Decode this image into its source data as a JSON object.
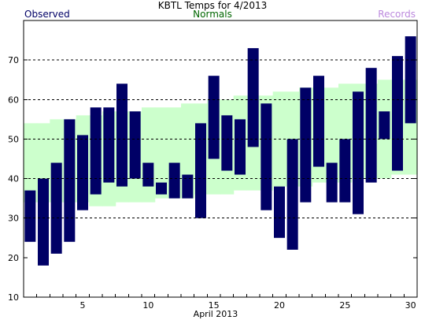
{
  "chart_data": {
    "type": "bar",
    "title": "KBTL Temps for 4/2013",
    "xlabel": "April 2013",
    "ylabel": "",
    "legend": {
      "observed": "Observed",
      "normals": "Normals",
      "records": "Records"
    },
    "colors": {
      "observed": "#000066",
      "normals_band": "#ccffcc",
      "normals_text": "#006600",
      "records_text": "#bb88dd",
      "title_text": "#000000",
      "grid": "#000000"
    },
    "xlim": [
      0.5,
      30.5
    ],
    "ylim": [
      10,
      80
    ],
    "xticks": [
      5,
      10,
      15,
      20,
      25,
      30
    ],
    "yticks": [
      10,
      20,
      30,
      40,
      50,
      60,
      70
    ],
    "grid_y": [
      30,
      40,
      50,
      60,
      70
    ],
    "days": [
      1,
      2,
      3,
      4,
      5,
      6,
      7,
      8,
      9,
      10,
      11,
      12,
      13,
      14,
      15,
      16,
      17,
      18,
      19,
      20,
      21,
      22,
      23,
      24,
      25,
      26,
      27,
      28,
      29,
      30
    ],
    "observed_high": [
      37,
      40,
      44,
      55,
      51,
      58,
      58,
      64,
      57,
      44,
      39,
      44,
      41,
      54,
      66,
      56,
      55,
      73,
      59,
      38,
      50,
      63,
      66,
      44,
      50,
      62,
      68,
      57,
      71,
      76
    ],
    "observed_low": [
      24,
      18,
      21,
      24,
      32,
      36,
      39,
      38,
      40,
      38,
      36,
      35,
      35,
      30,
      45,
      42,
      41,
      48,
      32,
      25,
      22,
      34,
      43,
      34,
      34,
      31,
      39,
      50,
      42,
      54
    ],
    "normal_high": [
      54,
      54,
      55,
      55,
      56,
      56,
      57,
      57,
      57,
      58,
      58,
      58,
      59,
      59,
      60,
      60,
      61,
      61,
      61,
      62,
      62,
      63,
      63,
      63,
      64,
      64,
      64,
      65,
      65,
      65
    ],
    "normal_low": [
      34,
      34,
      34,
      34,
      34,
      33,
      33,
      34,
      34,
      34,
      35,
      35,
      35,
      36,
      36,
      36,
      37,
      37,
      37,
      38,
      38,
      38,
      39,
      39,
      39,
      40,
      40,
      40,
      41,
      41
    ]
  }
}
